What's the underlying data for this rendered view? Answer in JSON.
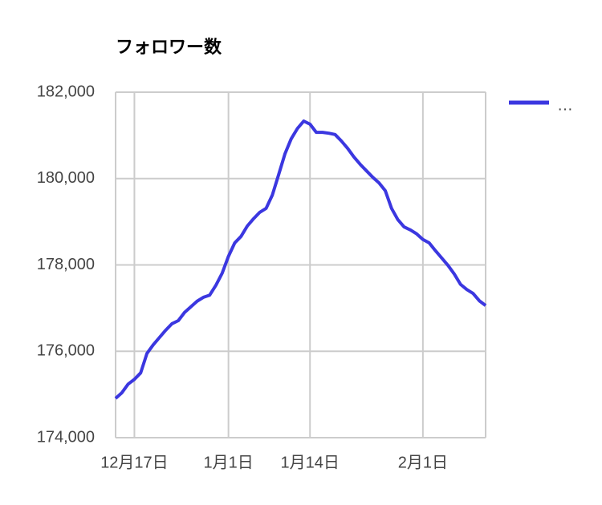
{
  "chart_data": {
    "type": "line",
    "title": "フォロワー数",
    "categories": [
      null,
      null,
      null,
      "12月17日",
      null,
      null,
      null,
      null,
      null,
      null,
      null,
      null,
      null,
      null,
      null,
      null,
      null,
      null,
      "1月1日",
      null,
      null,
      null,
      null,
      null,
      null,
      null,
      null,
      null,
      null,
      null,
      null,
      "1月14日",
      null,
      null,
      null,
      null,
      null,
      null,
      null,
      null,
      null,
      null,
      null,
      null,
      null,
      null,
      null,
      null,
      null,
      "2月1日",
      null,
      null,
      null,
      null,
      null,
      null,
      null,
      null,
      null,
      null
    ],
    "series": [
      {
        "name": "…",
        "color": "#3b37e0",
        "values": [
          174910,
          175040,
          175240,
          175350,
          175500,
          175950,
          176150,
          176320,
          176490,
          176640,
          176710,
          176900,
          177030,
          177160,
          177250,
          177300,
          177530,
          177810,
          178200,
          178510,
          178660,
          178900,
          179070,
          179220,
          179310,
          179620,
          180090,
          180570,
          180920,
          181160,
          181330,
          181260,
          181070,
          181070,
          181050,
          181020,
          180870,
          180700,
          180500,
          180330,
          180180,
          180030,
          179900,
          179720,
          179310,
          179050,
          178880,
          178810,
          178720,
          178590,
          178510,
          178330,
          178160,
          177990,
          177790,
          177550,
          177430,
          177340,
          177170,
          177060
        ]
      }
    ],
    "ylim": [
      174000,
      182000
    ],
    "yticks": [
      {
        "value": 174000,
        "label": "174,000"
      },
      {
        "value": 176000,
        "label": "176,000"
      },
      {
        "value": 178000,
        "label": "178,000"
      },
      {
        "value": 180000,
        "label": "180,000"
      },
      {
        "value": 182000,
        "label": "182,000"
      }
    ],
    "grid": true,
    "legend": "right"
  }
}
